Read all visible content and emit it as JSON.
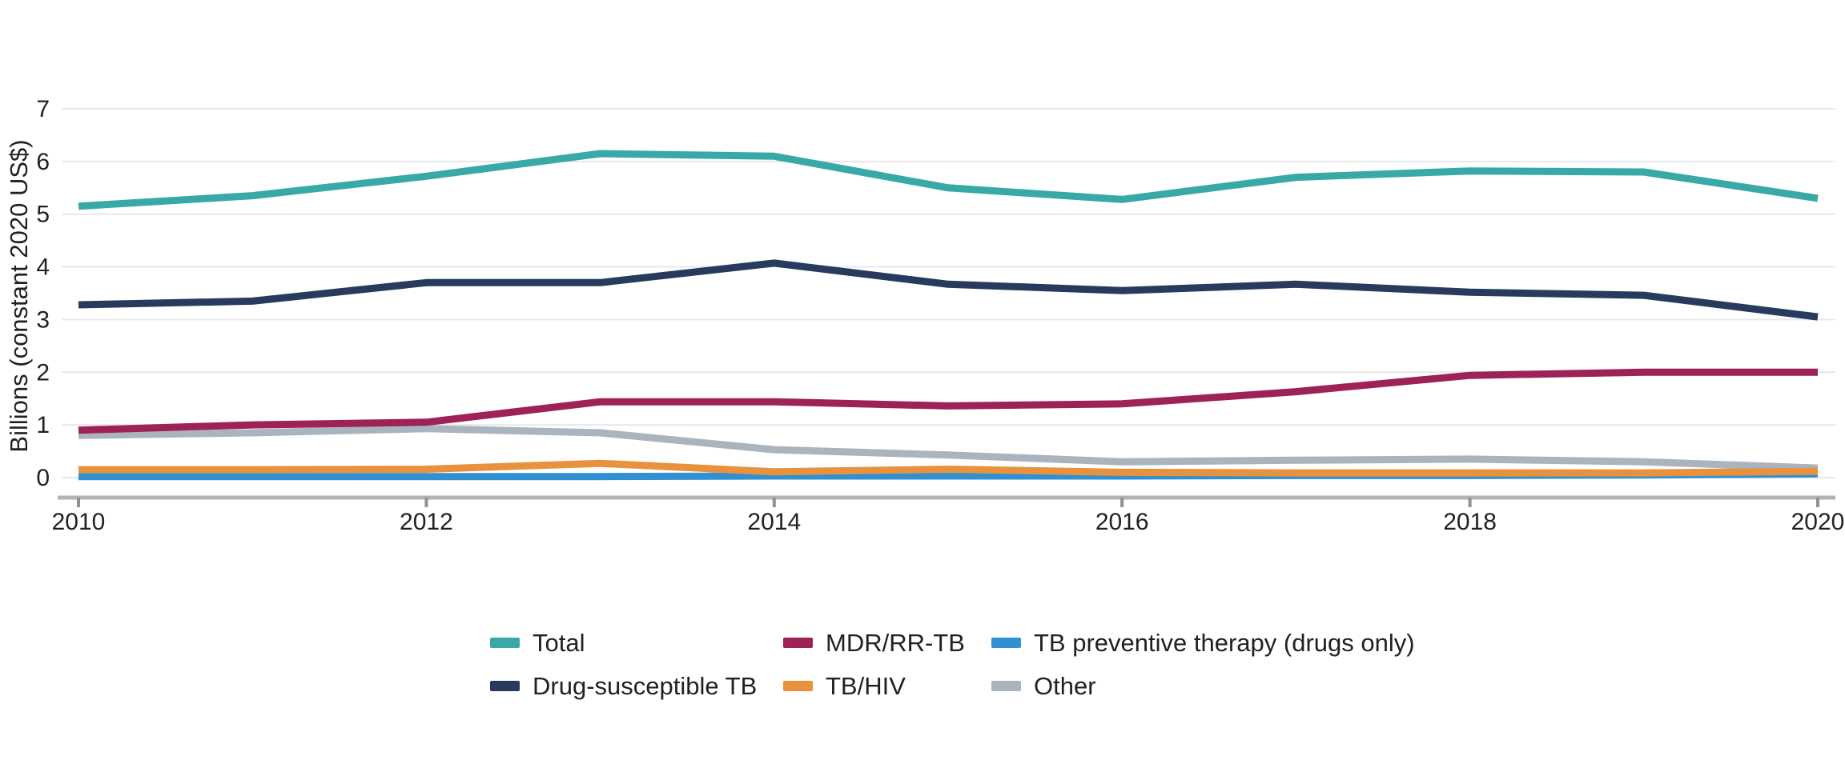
{
  "chart_data": {
    "type": "line",
    "title": "",
    "ylabel": "Billions (constant 2020 US$)",
    "xlabel": "",
    "x": [
      2010,
      2011,
      2012,
      2013,
      2014,
      2015,
      2016,
      2017,
      2018,
      2019,
      2020
    ],
    "xlim": [
      2010,
      2020
    ],
    "ylim": [
      0,
      7
    ],
    "yticks": [
      0,
      1,
      2,
      3,
      4,
      5,
      6,
      7
    ],
    "xticks": [
      2010,
      2012,
      2014,
      2016,
      2018,
      2020
    ],
    "grid": "horizontal",
    "legend_position": "bottom",
    "series": [
      {
        "name": "Other",
        "color": "#aab4be",
        "values": [
          0.8,
          0.85,
          0.93,
          0.85,
          0.53,
          0.43,
          0.3,
          0.33,
          0.35,
          0.3,
          0.18
        ],
        "legend_col": 2,
        "legend_row": 1
      },
      {
        "name": "TB preventive therapy (drugs only)",
        "color": "#3090d2",
        "values": [
          0.02,
          0.02,
          0.02,
          0.02,
          0.03,
          0.03,
          0.03,
          0.04,
          0.04,
          0.05,
          0.07
        ],
        "legend_col": 2,
        "legend_row": 0
      },
      {
        "name": "TB/HIV",
        "color": "#e9923e",
        "values": [
          0.15,
          0.15,
          0.16,
          0.27,
          0.11,
          0.16,
          0.1,
          0.09,
          0.09,
          0.09,
          0.12
        ],
        "legend_col": 1,
        "legend_row": 1
      },
      {
        "name": "MDR/RR-TB",
        "color": "#9e2158",
        "values": [
          0.9,
          1.0,
          1.05,
          1.44,
          1.44,
          1.36,
          1.4,
          1.63,
          1.94,
          2.0,
          2.0
        ],
        "legend_col": 1,
        "legend_row": 0
      },
      {
        "name": "Drug-susceptible TB",
        "color": "#283a5d",
        "values": [
          3.28,
          3.35,
          3.7,
          3.7,
          4.07,
          3.67,
          3.55,
          3.67,
          3.52,
          3.46,
          3.05
        ],
        "legend_col": 0,
        "legend_row": 1
      },
      {
        "name": "Total",
        "color": "#39a9a8",
        "values": [
          5.15,
          5.35,
          5.72,
          6.15,
          6.1,
          5.5,
          5.28,
          5.7,
          5.82,
          5.8,
          5.3
        ],
        "legend_col": 0,
        "legend_row": 0
      }
    ],
    "colors": {
      "grid": "#e8e8e8",
      "axis": "#b3b3b3",
      "axis_tick": "#909090",
      "text": "#212121"
    }
  }
}
